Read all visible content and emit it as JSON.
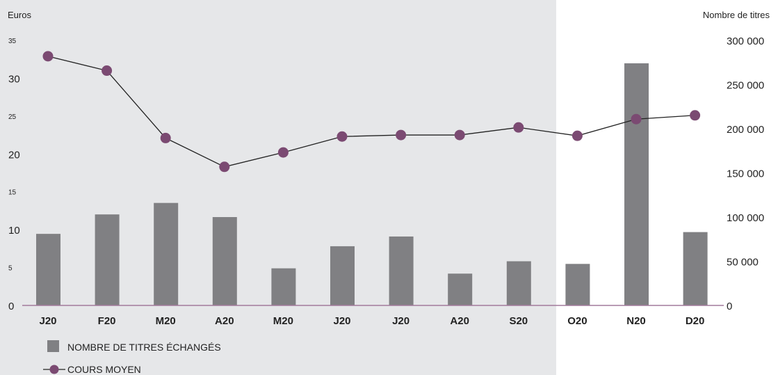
{
  "chart_data": {
    "type": "bar",
    "categories": [
      "J20",
      "F20",
      "M20",
      "A20",
      "M20",
      "J20",
      "J20",
      "A20",
      "S20",
      "O20",
      "N20",
      "D20"
    ],
    "series": [
      {
        "name": "NOMBRE DE TITRES ÉCHANGÉS",
        "kind": "bar",
        "axis": "right",
        "values": [
          81000,
          103000,
          116000,
          100000,
          42000,
          67000,
          78000,
          36000,
          50000,
          47000,
          274000,
          83000
        ]
      },
      {
        "name": "COURS MOYEN",
        "kind": "line",
        "axis": "left",
        "values": [
          32.9,
          31.0,
          22.1,
          18.3,
          20.2,
          22.3,
          22.5,
          22.5,
          23.5,
          22.4,
          24.6,
          25.1
        ]
      }
    ],
    "ylabel_left": "Euros",
    "ylabel_right": "Nombre de titres",
    "ylim_left": [
      0,
      35
    ],
    "ylim_right": [
      0,
      300000
    ],
    "left_ticks": [
      "0",
      "5",
      "10",
      "15",
      "20",
      "25",
      "30",
      "35"
    ],
    "right_ticks": [
      "0",
      "50 000",
      "100 000",
      "150 000",
      "200 000",
      "250 000",
      "300 000"
    ],
    "shaded_region": "J20 through O20",
    "grid": false,
    "legend_position": "bottom-left",
    "colors": {
      "bar": "#808083",
      "line": "#222222",
      "marker": "#7b4a72",
      "baseline": "#a27a9c",
      "shade": "#e6e7e9"
    }
  }
}
